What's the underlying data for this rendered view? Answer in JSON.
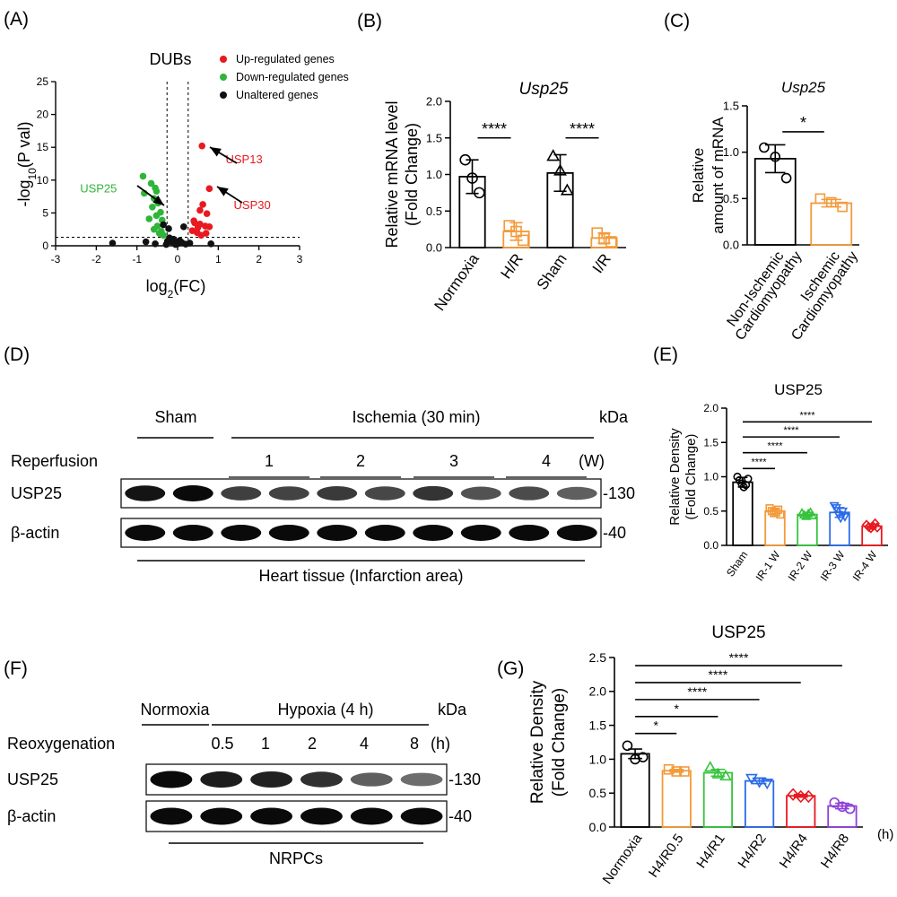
{
  "colors": {
    "up": "#e8191f",
    "down": "#2fb53a",
    "unaltered": "#111111",
    "orange": "#f39a3a",
    "green": "#35c43c",
    "blue": "#2b6be8",
    "red": "#e8191f",
    "purple": "#8e3fd9",
    "black": "#000000"
  },
  "panel_labels": [
    "(A)",
    "(B)",
    "(C)",
    "(D)",
    "(E)",
    "(F)",
    "(G)"
  ],
  "chart_data": [
    {
      "panel": "(A)",
      "type": "scatter",
      "title": "DUBs",
      "ylabel_parts": [
        "-log",
        "10",
        "(P val)"
      ],
      "xlabel_parts": [
        "log",
        "2",
        "(FC)"
      ],
      "xlim": [
        -3,
        3
      ],
      "ylim": [
        0,
        25
      ],
      "xticks": [
        "-3",
        "-2",
        "-1",
        "0",
        "1",
        "2",
        "3"
      ],
      "yticks": [
        "0",
        "5",
        "10",
        "15",
        "20",
        "25"
      ],
      "threshold_lines": {
        "x": [
          -0.26,
          0.26
        ],
        "y": 1.3
      },
      "legend": [
        "Up-regulated genes",
        "Down-regulated genes",
        "Unaltered genes"
      ],
      "legend_position": "top-right",
      "annotations": [
        {
          "text": "USP13",
          "color": "up",
          "at": [
            0.6,
            15.2
          ],
          "label_at": [
            1.18,
            12.6
          ]
        },
        {
          "text": "USP30",
          "color": "up",
          "at": [
            0.78,
            8.7
          ],
          "label_at": [
            1.38,
            5.6
          ]
        },
        {
          "text": "USP25",
          "color": "down",
          "at": [
            -0.3,
            3.4
          ],
          "label_at": [
            -2.4,
            8.1
          ]
        }
      ],
      "series": [
        {
          "name": "Up-regulated genes",
          "color": "up",
          "points": [
            [
              0.6,
              15.2
            ],
            [
              0.78,
              8.7
            ],
            [
              0.62,
              6.3
            ],
            [
              0.55,
              5.4
            ],
            [
              0.72,
              4.9
            ],
            [
              0.4,
              3.8
            ],
            [
              0.42,
              3.5
            ],
            [
              0.55,
              3.3
            ],
            [
              0.68,
              3.0
            ],
            [
              0.78,
              2.9
            ],
            [
              0.5,
              2.8
            ],
            [
              0.36,
              2.3
            ],
            [
              0.48,
              2.0
            ],
            [
              0.7,
              1.9
            ],
            [
              0.58,
              1.6
            ]
          ]
        },
        {
          "name": "Down-regulated genes",
          "color": "down",
          "points": [
            [
              -0.85,
              10.6
            ],
            [
              -0.65,
              9.5
            ],
            [
              -0.55,
              8.8
            ],
            [
              -0.52,
              8.3
            ],
            [
              -0.82,
              8.0
            ],
            [
              -0.58,
              7.2
            ],
            [
              -0.48,
              6.5
            ],
            [
              -0.62,
              5.9
            ],
            [
              -0.42,
              5.1
            ],
            [
              -0.52,
              4.6
            ],
            [
              -0.7,
              4.1
            ],
            [
              -0.38,
              3.9
            ],
            [
              -0.5,
              3.0
            ],
            [
              -0.58,
              2.5
            ],
            [
              -0.4,
              2.2
            ],
            [
              -0.45,
              1.9
            ],
            [
              -0.35,
              1.6
            ]
          ]
        },
        {
          "name": "Unaltered genes",
          "color": "unaltered",
          "points": [
            [
              -0.35,
              3.2
            ],
            [
              -0.22,
              2.6
            ],
            [
              0.15,
              2.9
            ],
            [
              -0.2,
              1.2
            ],
            [
              -0.1,
              1.0
            ],
            [
              0.05,
              0.8
            ],
            [
              -0.15,
              0.6
            ],
            [
              0.1,
              0.5
            ],
            [
              0.0,
              0.3
            ],
            [
              -0.05,
              0.2
            ],
            [
              0.2,
              0.25
            ],
            [
              0.3,
              0.4
            ],
            [
              -0.25,
              0.7
            ],
            [
              -0.28,
              0.2
            ],
            [
              -0.78,
              0.6
            ],
            [
              -0.55,
              0.3
            ],
            [
              -1.6,
              0.4
            ],
            [
              0.82,
              0.3
            ]
          ]
        }
      ]
    },
    {
      "panel": "(B)",
      "type": "bar",
      "title": "Usp25",
      "ylabel_lines": [
        "Relative mRNA level",
        "(Fold Change)"
      ],
      "ylim": [
        0,
        2.0
      ],
      "yticks": [
        "0.0",
        "0.5",
        "1.0",
        "1.5",
        "2.0"
      ],
      "categories": [
        "Normoxia",
        "H/R",
        "Sham",
        "I/R"
      ],
      "values": [
        0.97,
        0.22,
        1.02,
        0.13
      ],
      "errors": [
        0.23,
        0.12,
        0.25,
        0.07
      ],
      "colors": [
        "black",
        "orange",
        "black",
        "orange"
      ],
      "markers": [
        "circle",
        "square",
        "triangle",
        "square"
      ],
      "points": [
        [
          1.2,
          0.95,
          0.75
        ],
        [
          0.3,
          0.22,
          0.1
        ],
        [
          1.25,
          1.05,
          0.78
        ],
        [
          0.2,
          0.12,
          0.08
        ]
      ],
      "significance": [
        {
          "from": 0,
          "to": 1,
          "label": "****",
          "y": 1.5
        },
        {
          "from": 2,
          "to": 3,
          "label": "****",
          "y": 1.5
        }
      ]
    },
    {
      "panel": "(C)",
      "type": "bar",
      "title": "Usp25",
      "ylabel_lines": [
        "Relative",
        "amount of mRNA"
      ],
      "ylim": [
        0,
        1.5
      ],
      "yticks": [
        "0.0",
        "0.5",
        "1.0",
        "1.5"
      ],
      "categories": [
        [
          "Non-Ischemic",
          "Cardiomyopathy"
        ],
        [
          "Ischemic",
          "Cardiomyopathy"
        ]
      ],
      "values": [
        0.93,
        0.45
      ],
      "errors": [
        0.15,
        0.04
      ],
      "colors": [
        "black",
        "orange"
      ],
      "markers": [
        "circle",
        "square"
      ],
      "points": [
        [
          1.05,
          0.95,
          0.72
        ],
        [
          0.5,
          0.46,
          0.41
        ]
      ],
      "significance": [
        {
          "from": 0,
          "to": 1,
          "label": "*",
          "y": 1.22
        }
      ]
    },
    {
      "panel": "(E)",
      "type": "bar",
      "title": "USP25",
      "ylabel_lines": [
        "Relative Density",
        "(Fold Change)"
      ],
      "ylim": [
        0,
        2.0
      ],
      "yticks": [
        "0.0",
        "0.5",
        "1.0",
        "1.5",
        "2.0"
      ],
      "categories": [
        "Sham",
        "IR-1 W",
        "IR-2 W",
        "IR-3 W",
        "IR-4 W"
      ],
      "values": [
        0.92,
        0.5,
        0.45,
        0.48,
        0.28
      ],
      "errors": [
        0.07,
        0.04,
        0.03,
        0.07,
        0.03
      ],
      "colors": [
        "black",
        "orange",
        "green",
        "blue",
        "red"
      ],
      "markers": [
        "circle",
        "square",
        "triangle",
        "triangle-down",
        "diamond"
      ],
      "points": [
        [
          1.0,
          0.95,
          0.9,
          0.85,
          0.88,
          0.97
        ],
        [
          0.54,
          0.5,
          0.47,
          0.48,
          0.52,
          0.45
        ],
        [
          0.47,
          0.44,
          0.42,
          0.46,
          0.48,
          0.43
        ],
        [
          0.58,
          0.55,
          0.45,
          0.4,
          0.5,
          0.42
        ],
        [
          0.3,
          0.27,
          0.25,
          0.28,
          0.32,
          0.26
        ]
      ],
      "significance": [
        {
          "from": 0,
          "to": 1,
          "label": "****",
          "y": 1.12
        },
        {
          "from": 0,
          "to": 2,
          "label": "****",
          "y": 1.35
        },
        {
          "from": 0,
          "to": 3,
          "label": "****",
          "y": 1.58
        },
        {
          "from": 0,
          "to": 4,
          "label": "****",
          "y": 1.8
        }
      ]
    },
    {
      "panel": "(G)",
      "type": "bar",
      "title": "USP25",
      "ylabel_lines": [
        "Relative Density",
        "(Fold Change)"
      ],
      "xunit": "(h)",
      "ylim": [
        0,
        2.5
      ],
      "yticks": [
        "0.0",
        "0.5",
        "1.0",
        "1.5",
        "2.0",
        "2.5"
      ],
      "categories": [
        "Normoxia",
        "H4/R0.5",
        "H4/R1",
        "H4/R2",
        "H4/R4",
        "H4/R8"
      ],
      "values": [
        1.08,
        0.83,
        0.8,
        0.68,
        0.46,
        0.31
      ],
      "errors": [
        0.07,
        0.02,
        0.05,
        0.04,
        0.02,
        0.04
      ],
      "colors": [
        "black",
        "orange",
        "green",
        "blue",
        "red",
        "purple"
      ],
      "markers": [
        "circle",
        "square",
        "triangle",
        "triangle-down",
        "diamond",
        "circle"
      ],
      "points": [
        [
          1.2,
          1.0,
          1.03
        ],
        [
          0.85,
          0.82,
          0.82
        ],
        [
          0.88,
          0.78,
          0.75
        ],
        [
          0.72,
          0.67,
          0.65
        ],
        [
          0.48,
          0.45,
          0.45
        ],
        [
          0.36,
          0.3,
          0.27
        ]
      ],
      "significance": [
        {
          "from": 0,
          "to": 1,
          "label": "*",
          "y": 1.38
        },
        {
          "from": 0,
          "to": 2,
          "label": "*",
          "y": 1.63
        },
        {
          "from": 0,
          "to": 3,
          "label": "****",
          "y": 1.88
        },
        {
          "from": 0,
          "to": 4,
          "label": "****",
          "y": 2.13
        },
        {
          "from": 0,
          "to": 5,
          "label": "****",
          "y": 2.38
        }
      ]
    }
  ],
  "blots": {
    "D": {
      "group_headers": [
        "Sham",
        "Ischemia (30 min)"
      ],
      "kda_label": "kDa",
      "row_header_label": "Reperfusion",
      "reperfusion_values": [
        "1",
        "2",
        "3",
        "4"
      ],
      "reperfusion_unit": "(W)",
      "rows": [
        {
          "label": "USP25",
          "marker": "-130",
          "intensity": [
            0.95,
            1.0,
            0.72,
            0.7,
            0.75,
            0.68,
            0.78,
            0.62,
            0.66,
            0.55
          ]
        },
        {
          "label": "β-actin",
          "marker": "-40",
          "intensity": [
            1.0,
            1.0,
            1.0,
            1.0,
            1.0,
            1.0,
            1.0,
            1.0,
            1.0,
            1.0
          ]
        }
      ],
      "footer": "Heart tissue (Infarction area)"
    },
    "F": {
      "group_headers": [
        "Normoxia",
        "Hypoxia (4 h)"
      ],
      "kda_label": "kDa",
      "row_header_label": "Reoxygenation",
      "reoxygenation_values": [
        "0.5",
        "1",
        "2",
        "4",
        "8"
      ],
      "reoxygenation_unit": "(h)",
      "rows": [
        {
          "label": "USP25",
          "marker": "-130",
          "intensity": [
            1.0,
            0.9,
            0.88,
            0.8,
            0.55,
            0.48
          ]
        },
        {
          "label": "β-actin",
          "marker": "-40",
          "intensity": [
            1.0,
            1.0,
            1.0,
            1.0,
            1.0,
            1.0
          ]
        }
      ],
      "footer": "NRPCs"
    }
  }
}
